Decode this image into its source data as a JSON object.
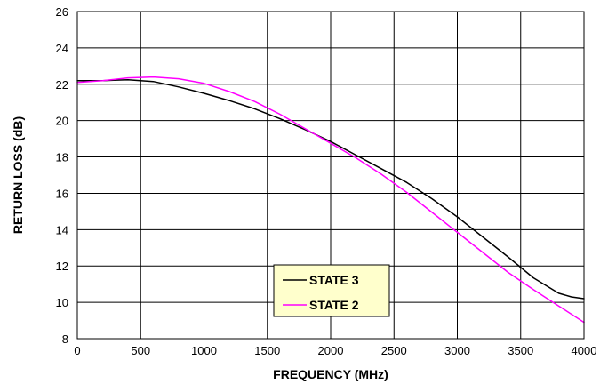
{
  "chart_data": {
    "type": "line",
    "title": "",
    "xlabel": "FREQUENCY (MHz)",
    "ylabel": "RETURN LOSS (dB)",
    "xlim": [
      0,
      4000
    ],
    "ylim": [
      8,
      26
    ],
    "xticks": [
      0,
      500,
      1000,
      1500,
      2000,
      2500,
      3000,
      3500,
      4000
    ],
    "yticks": [
      8,
      10,
      12,
      14,
      16,
      18,
      20,
      22,
      24,
      26
    ],
    "grid": true,
    "legend_position": "bottom-center",
    "series": [
      {
        "name": "STATE 3",
        "color": "#000000",
        "x": [
          0,
          200,
          400,
          600,
          800,
          1000,
          1200,
          1400,
          1600,
          1800,
          2000,
          2200,
          2400,
          2600,
          2800,
          3000,
          3200,
          3400,
          3600,
          3800,
          3900,
          4000
        ],
        "y": [
          22.2,
          22.2,
          22.25,
          22.15,
          21.85,
          21.5,
          21.1,
          20.65,
          20.1,
          19.5,
          18.85,
          18.1,
          17.35,
          16.6,
          15.7,
          14.7,
          13.6,
          12.5,
          11.35,
          10.5,
          10.3,
          10.2
        ]
      },
      {
        "name": "STATE 2",
        "color": "#ff00ff",
        "x": [
          0,
          200,
          400,
          600,
          800,
          1000,
          1200,
          1400,
          1600,
          1800,
          2000,
          2200,
          2400,
          2600,
          2800,
          3000,
          3200,
          3400,
          3600,
          3800,
          4000
        ],
        "y": [
          22.1,
          22.2,
          22.35,
          22.4,
          22.3,
          22.05,
          21.6,
          21.05,
          20.35,
          19.55,
          18.75,
          17.95,
          17.05,
          16.05,
          14.95,
          13.85,
          12.75,
          11.65,
          10.7,
          9.8,
          8.9
        ]
      }
    ]
  }
}
